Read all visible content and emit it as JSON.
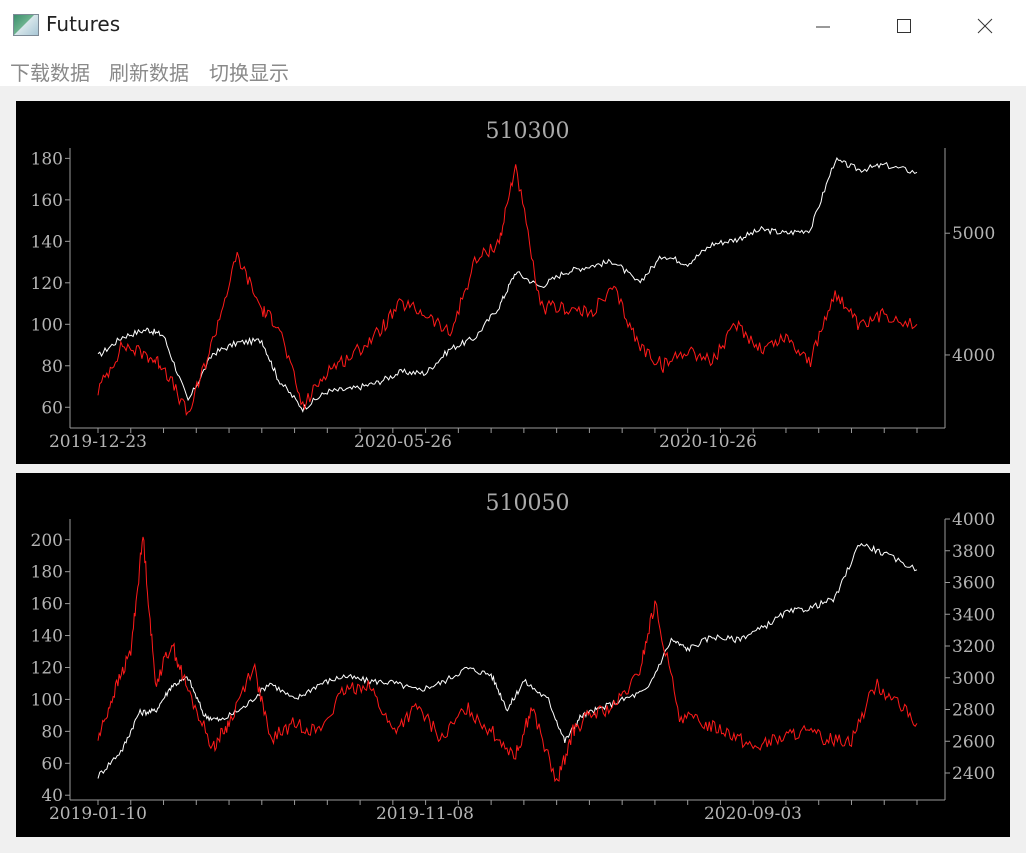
{
  "window": {
    "title": "Futures",
    "icon": "app-window-icon",
    "controls": [
      "minimize-icon",
      "maximize-icon",
      "close-icon"
    ]
  },
  "menu": {
    "items": [
      "下载数据",
      "刷新数据",
      "切换显示"
    ]
  },
  "colors": {
    "background": "#000000",
    "line_white": "#ffffff",
    "line_red": "#ff1a1a",
    "axis": "#9a9a9a"
  },
  "chart_data": [
    {
      "type": "line",
      "title": "510300",
      "x_ticks": [
        "2019-12-23",
        "2020-05-26",
        "2020-10-26"
      ],
      "x_range": [
        "2019-12-23",
        "2021-03-22"
      ],
      "yleft_ticks": [
        60,
        80,
        100,
        120,
        140,
        160,
        180
      ],
      "yleft_range": [
        50,
        185
      ],
      "yright_ticks": [
        4000,
        5000
      ],
      "yright_range": [
        3400,
        5700
      ],
      "grid": false,
      "series": [
        {
          "color": "#ffffff",
          "axis": "right",
          "x": [
            0,
            0.03,
            0.06,
            0.08,
            0.11,
            0.14,
            0.17,
            0.2,
            0.22,
            0.25,
            0.28,
            0.31,
            0.34,
            0.37,
            0.4,
            0.43,
            0.46,
            0.49,
            0.51,
            0.54,
            0.57,
            0.6,
            0.63,
            0.66,
            0.69,
            0.72,
            0.75,
            0.78,
            0.81,
            0.84,
            0.87,
            0.9,
            0.93,
            0.96,
            1.0
          ],
          "y": [
            3990,
            4150,
            4210,
            4160,
            3620,
            4010,
            4100,
            4120,
            3800,
            3560,
            3700,
            3720,
            3770,
            3860,
            3850,
            4050,
            4140,
            4400,
            4680,
            4560,
            4680,
            4730,
            4770,
            4590,
            4820,
            4750,
            4910,
            4950,
            5030,
            5000,
            5030,
            5600,
            5520,
            5560,
            5500
          ]
        },
        {
          "color": "#ff1a1a",
          "axis": "left",
          "x": [
            0,
            0.03,
            0.06,
            0.08,
            0.11,
            0.14,
            0.17,
            0.2,
            0.22,
            0.25,
            0.28,
            0.31,
            0.34,
            0.37,
            0.4,
            0.43,
            0.46,
            0.49,
            0.51,
            0.54,
            0.57,
            0.6,
            0.63,
            0.66,
            0.69,
            0.72,
            0.75,
            0.78,
            0.81,
            0.84,
            0.87,
            0.9,
            0.93,
            0.96,
            1.0
          ],
          "y": [
            68,
            90,
            85,
            80,
            56,
            92,
            133,
            107,
            100,
            60,
            78,
            85,
            95,
            110,
            105,
            95,
            130,
            140,
            177,
            108,
            108,
            105,
            117,
            90,
            80,
            88,
            82,
            100,
            88,
            94,
            82,
            116,
            98,
            105,
            100
          ]
        }
      ]
    },
    {
      "type": "line",
      "title": "510050",
      "x_ticks": [
        "2019-01-10",
        "2019-11-08",
        "2020-09-03"
      ],
      "x_range": [
        "2019-01-10",
        "2021-03-22"
      ],
      "yleft_ticks": [
        40,
        60,
        80,
        100,
        120,
        140,
        160,
        180,
        200
      ],
      "yleft_range": [
        37,
        213
      ],
      "yright_ticks": [
        2400,
        2600,
        2800,
        3000,
        3200,
        3400,
        3600,
        3800,
        4000
      ],
      "yright_range": [
        2230,
        4000
      ],
      "grid": false,
      "series": [
        {
          "color": "#ffffff",
          "axis": "right",
          "x": [
            0,
            0.03,
            0.05,
            0.07,
            0.09,
            0.11,
            0.13,
            0.15,
            0.18,
            0.21,
            0.24,
            0.27,
            0.3,
            0.33,
            0.36,
            0.39,
            0.42,
            0.45,
            0.48,
            0.5,
            0.52,
            0.55,
            0.57,
            0.59,
            0.61,
            0.64,
            0.67,
            0.7,
            0.72,
            0.75,
            0.78,
            0.81,
            0.84,
            0.87,
            0.9,
            0.93,
            0.96,
            1.0
          ],
          "y": [
            2380,
            2550,
            2780,
            2790,
            2950,
            3000,
            2760,
            2730,
            2820,
            2970,
            2860,
            2960,
            3010,
            2980,
            2970,
            2920,
            2970,
            3060,
            3020,
            2800,
            2980,
            2860,
            2600,
            2760,
            2800,
            2860,
            2920,
            3240,
            3180,
            3260,
            3240,
            3310,
            3410,
            3440,
            3500,
            3850,
            3780,
            3680
          ]
        },
        {
          "color": "#ff1a1a",
          "axis": "left",
          "x": [
            0,
            0.02,
            0.04,
            0.055,
            0.07,
            0.09,
            0.11,
            0.14,
            0.16,
            0.19,
            0.21,
            0.24,
            0.27,
            0.3,
            0.33,
            0.36,
            0.39,
            0.42,
            0.45,
            0.48,
            0.51,
            0.53,
            0.56,
            0.58,
            0.6,
            0.63,
            0.66,
            0.68,
            0.71,
            0.74,
            0.77,
            0.8,
            0.83,
            0.86,
            0.89,
            0.92,
            0.95,
            0.97,
            1.0
          ],
          "y": [
            75,
            105,
            130,
            203,
            110,
            135,
            105,
            70,
            85,
            122,
            75,
            85,
            80,
            105,
            110,
            80,
            95,
            75,
            95,
            80,
            65,
            95,
            47,
            80,
            90,
            95,
            115,
            160,
            90,
            85,
            80,
            70,
            75,
            80,
            75,
            75,
            110,
            100,
            85
          ]
        }
      ]
    }
  ]
}
